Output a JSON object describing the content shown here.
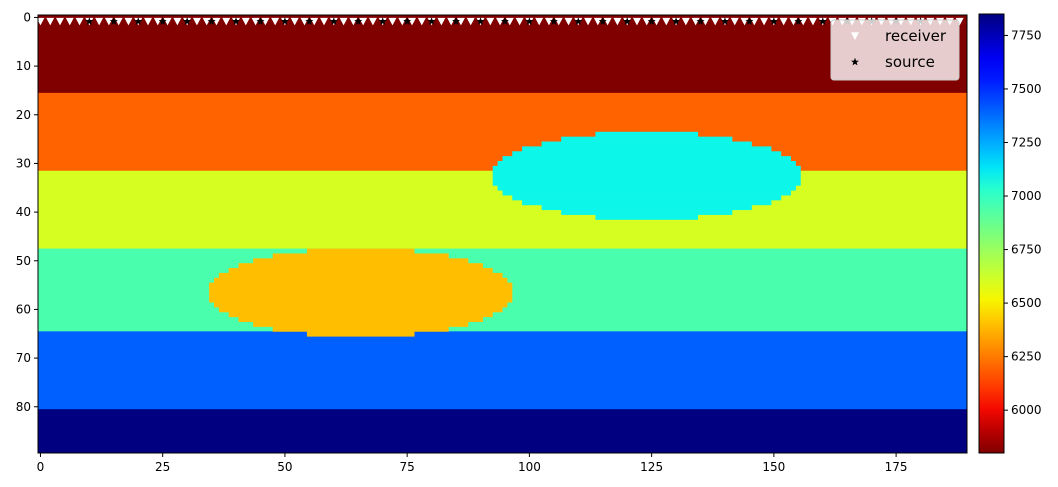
{
  "chart_data": {
    "type": "heatmap",
    "title": "",
    "xlabel": "",
    "ylabel": "",
    "extent": {
      "x": [
        -0.5,
        189.5
      ],
      "y": [
        89.5,
        -0.5
      ]
    },
    "xticks": [
      0,
      25,
      50,
      75,
      100,
      125,
      150,
      175
    ],
    "yticks": [
      0,
      10,
      20,
      30,
      40,
      50,
      60,
      70,
      80
    ],
    "colorbar": {
      "colormap": "jet",
      "range": [
        5800,
        7850
      ],
      "ticks": [
        6000,
        6250,
        6500,
        6750,
        7000,
        7250,
        7500,
        7750
      ]
    },
    "layers": [
      {
        "z_top": -0.5,
        "z_bottom": 15.5,
        "velocity": 5800
      },
      {
        "z_top": 15.5,
        "z_bottom": 31.5,
        "velocity": 6200
      },
      {
        "z_top": 31.5,
        "z_bottom": 47.5,
        "velocity": 6600
      },
      {
        "z_top": 47.5,
        "z_bottom": 64.5,
        "velocity": 6950
      },
      {
        "z_top": 64.5,
        "z_bottom": 80.5,
        "velocity": 7400
      },
      {
        "z_top": 80.5,
        "z_bottom": 89.5,
        "velocity": 7850
      }
    ],
    "anomalies": [
      {
        "center_x": 124,
        "center_z": 32.5,
        "radius_x": 31,
        "radius_z": 9,
        "velocity": 7100
      },
      {
        "center_x": 65.5,
        "center_z": 56.5,
        "radius_x": 31,
        "radius_z": 9,
        "velocity": 6400
      }
    ],
    "receivers": {
      "z": 0,
      "x_start": 0,
      "x_end": 189,
      "spacing": 2,
      "color": "#ffffff",
      "marker": "triangle-down"
    },
    "sources": {
      "z": 0,
      "x": [
        10,
        15,
        20,
        25,
        30,
        35,
        40,
        45,
        50,
        55,
        60,
        65,
        70,
        75,
        80,
        85,
        90,
        95,
        100,
        105,
        110,
        115,
        120,
        125,
        130,
        135,
        140,
        145,
        150,
        155,
        160,
        165,
        170,
        175,
        180
      ],
      "color": "#000000",
      "marker": "star"
    },
    "legend": {
      "placement": "top-right",
      "entries": [
        {
          "label": "receiver",
          "marker": "triangle-down",
          "color": "#ffffff"
        },
        {
          "label": "source",
          "marker": "star",
          "color": "#000000"
        }
      ]
    }
  }
}
